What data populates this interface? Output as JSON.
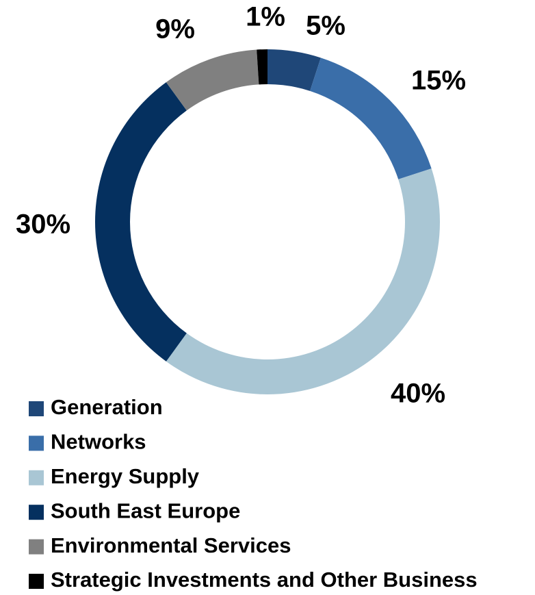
{
  "chart_data": {
    "type": "pie",
    "style": "donut",
    "title": "",
    "categories": [
      "Generation",
      "Networks",
      "Energy Supply",
      "South East Europe",
      "Environmental Services",
      "Strategic Investments and Other Business"
    ],
    "values": [
      5,
      15,
      40,
      30,
      9,
      1
    ],
    "data_labels": [
      "5%",
      "15%",
      "40%",
      "30%",
      "9%",
      "1%"
    ],
    "colors": [
      "#1f4778",
      "#3a6ea9",
      "#a9c6d4",
      "#05305f",
      "#808080",
      "#000000"
    ],
    "start_angle_deg": 0,
    "direction": "clockwise",
    "legend_position": "bottom-left",
    "legend_entries": [
      "Generation",
      "Networks",
      "Energy Supply",
      "South East Europe",
      "Environmental Services",
      "Strategic Investments and Other Business"
    ]
  }
}
